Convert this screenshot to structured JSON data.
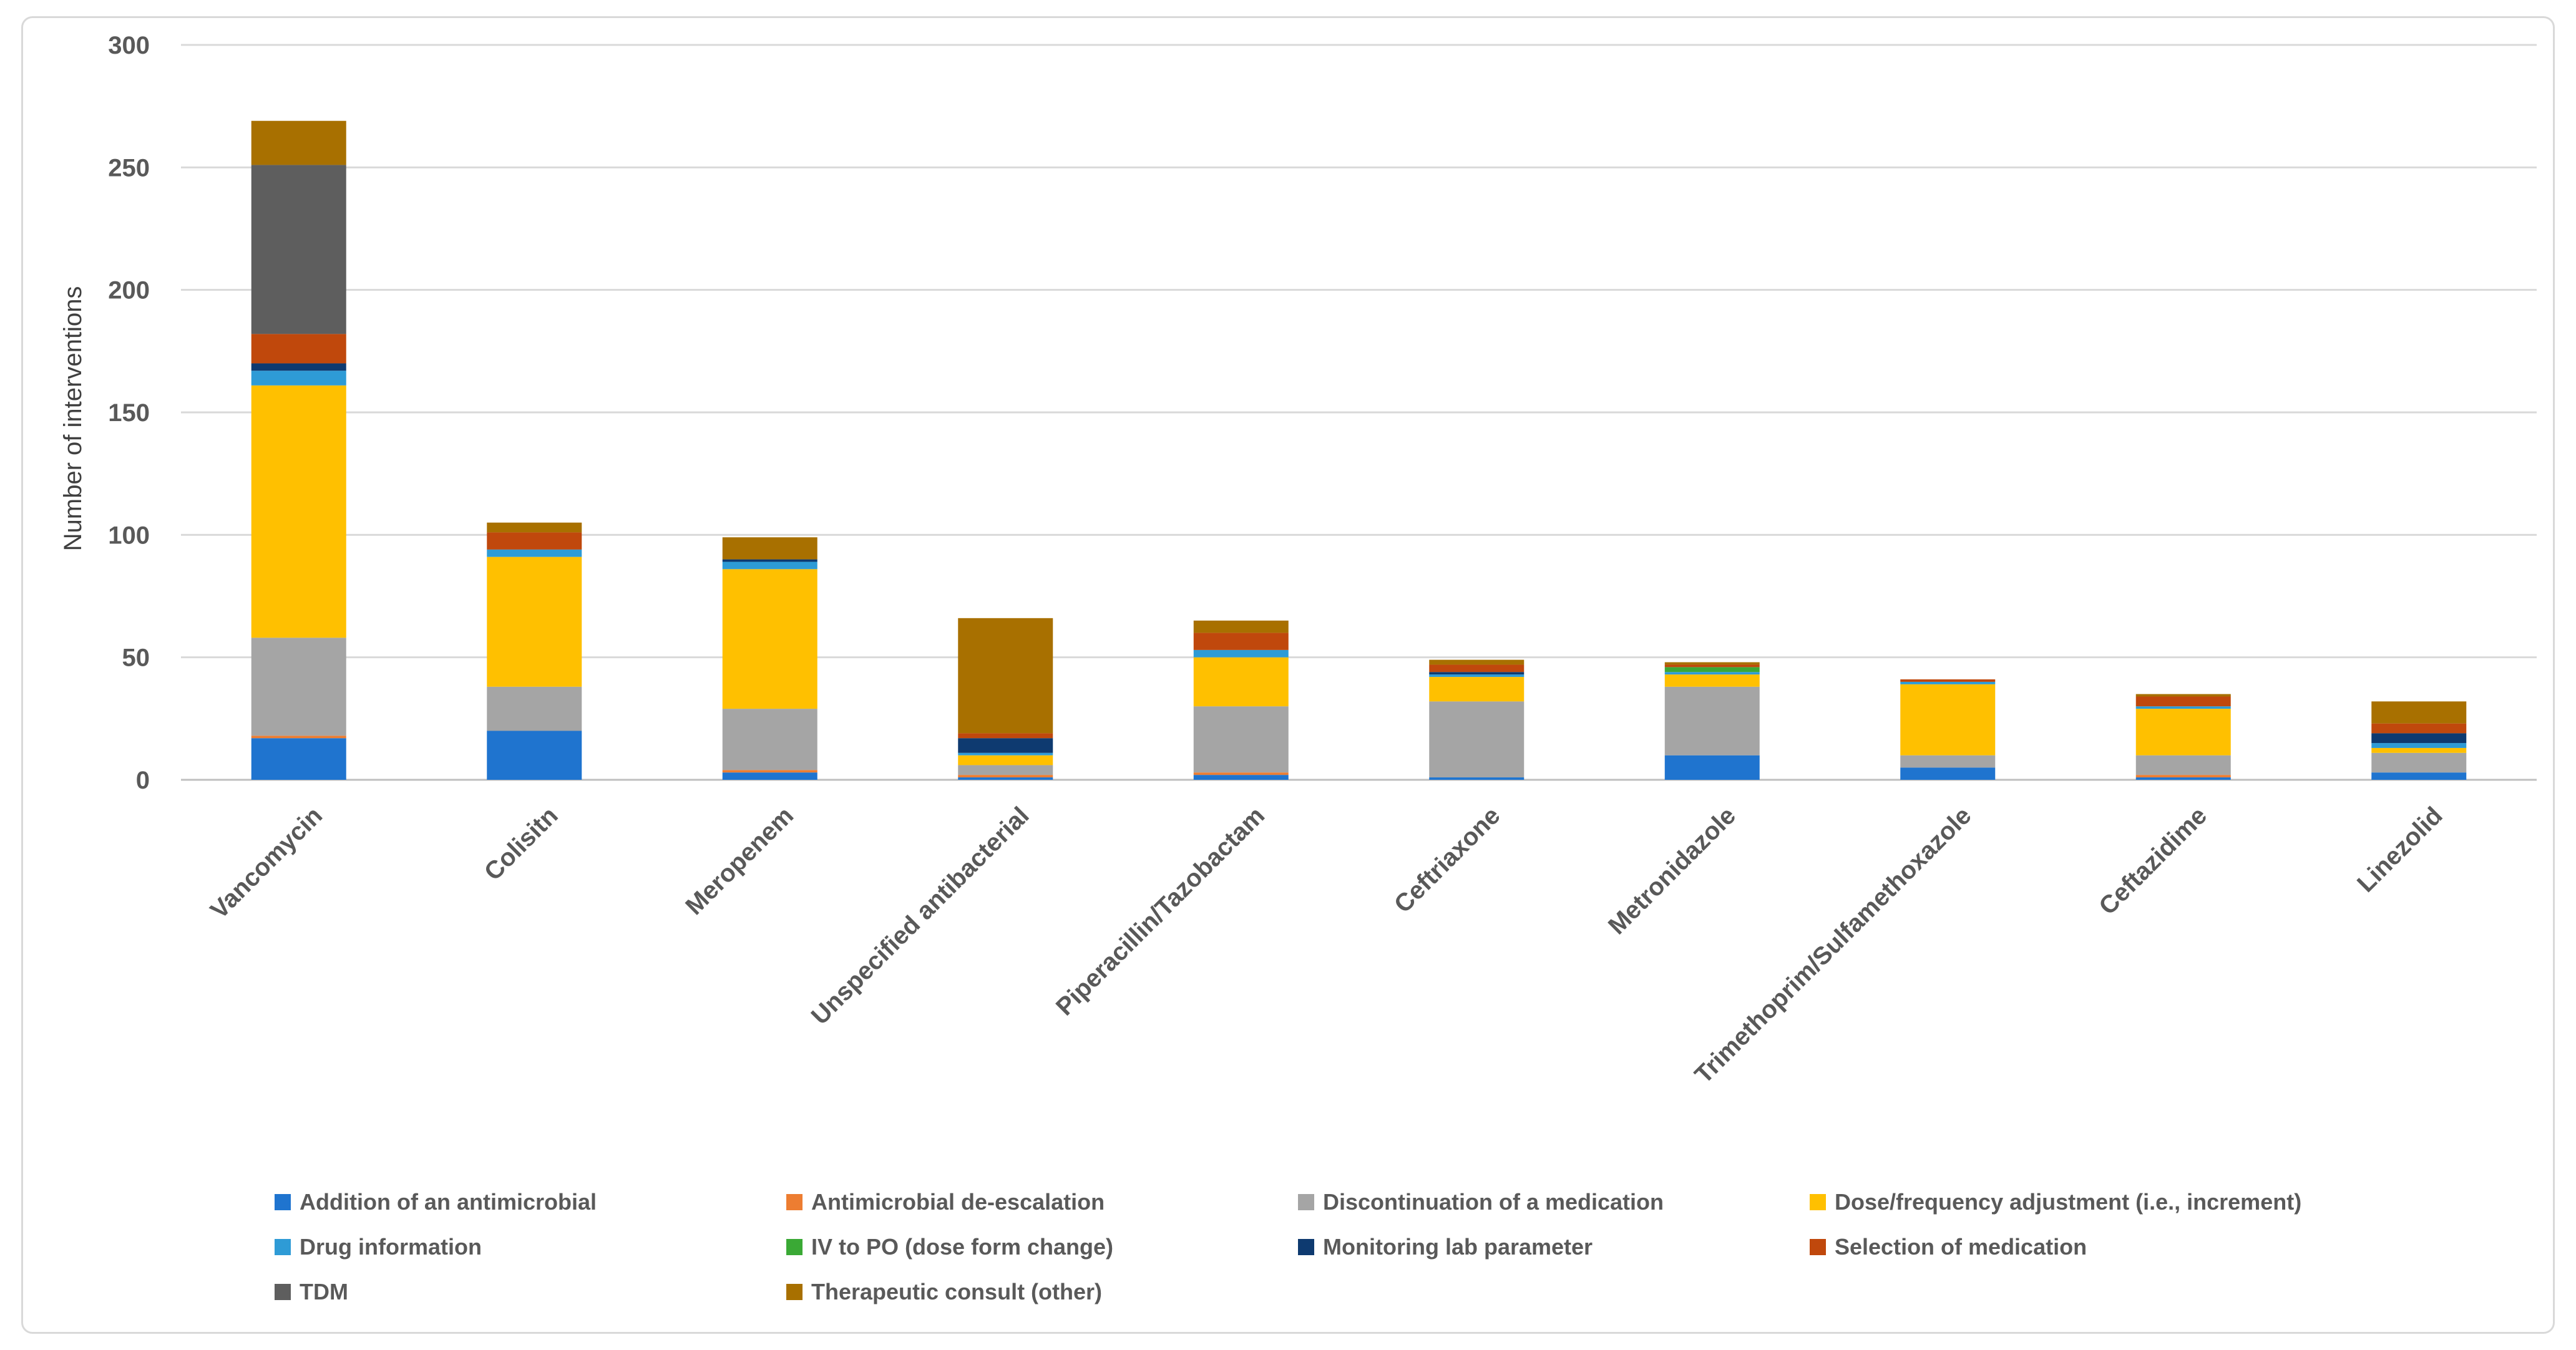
{
  "chart_data": {
    "type": "bar",
    "stacked": true,
    "title": "",
    "xlabel": "",
    "ylabel": "Number of interventions",
    "ylim": [
      0,
      300
    ],
    "yticks": [
      0,
      50,
      100,
      150,
      200,
      250,
      300
    ],
    "grid": true,
    "legend_position": "bottom",
    "categories": [
      "Vancomycin",
      "Colisitn",
      "Meropenem",
      "Unspecified antibacterial",
      "Piperacillin/Tazobactam",
      "Ceftriaxone",
      "Metronidazole",
      "Trimethoprim/Sulfamethoxazole",
      "Ceftazidime",
      "Linezolid"
    ],
    "series": [
      {
        "name": "Addition of an antimicrobial",
        "color": "#1f74cf",
        "values": [
          17,
          20,
          3,
          1,
          2,
          1,
          10,
          5,
          1,
          3
        ]
      },
      {
        "name": "Antimicrobial de-escalation",
        "color": "#ed7d31",
        "values": [
          1,
          0,
          1,
          1,
          1,
          0,
          0,
          0,
          1,
          0
        ]
      },
      {
        "name": "Discontinuation of a medication",
        "color": "#a5a5a5",
        "values": [
          40,
          18,
          25,
          4,
          27,
          31,
          28,
          5,
          8,
          8
        ]
      },
      {
        "name": "Dose/frequency adjustment (i.e., increment)",
        "color": "#ffc000",
        "values": [
          103,
          53,
          57,
          4,
          20,
          10,
          5,
          29,
          19,
          2
        ]
      },
      {
        "name": "Drug information",
        "color": "#2e9bd6",
        "values": [
          6,
          3,
          3,
          1,
          3,
          1,
          1,
          1,
          1,
          2
        ]
      },
      {
        "name": "IV to PO (dose form change)",
        "color": "#3aa935",
        "values": [
          0,
          0,
          0,
          0,
          0,
          0,
          2,
          0,
          0,
          0
        ]
      },
      {
        "name": "Monitoring lab parameter",
        "color": "#0e3a70",
        "values": [
          3,
          0,
          1,
          6,
          0,
          1,
          0,
          0,
          0,
          4
        ]
      },
      {
        "name": "Selection of medication",
        "color": "#c0480c",
        "values": [
          12,
          7,
          0,
          2,
          7,
          3,
          1,
          1,
          4,
          4
        ]
      },
      {
        "name": "TDM",
        "color": "#5e5e5e",
        "values": [
          69,
          0,
          0,
          0,
          0,
          0,
          0,
          0,
          0,
          0
        ]
      },
      {
        "name": "Therapeutic consult (other)",
        "color": "#a87000",
        "values": [
          18,
          4,
          9,
          47,
          5,
          2,
          1,
          0,
          1,
          9
        ]
      }
    ]
  }
}
